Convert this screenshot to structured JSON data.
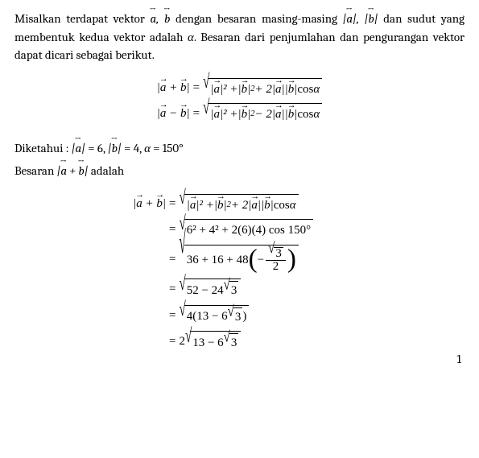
{
  "para1_a": "Misalkan terdapat vektor ",
  "para1_b": " dengan besaran masing-masing ",
  "para1_c": " dan sudut yang membentuk kedua vektor adalah ",
  "para1_d": ". Besaran dari penjumlahan dan pengurangan vektor dapat dicari sebagai berikut.",
  "alpha": "α",
  "given_label": "Diketahui : ",
  "given_a": "6",
  "given_b": "4",
  "given_alpha": "150°",
  "ask_a": "Besaran ",
  "ask_b": " adalah",
  "cos": "cos",
  "step2": "6² + 4² + 2(6)(4) cos 150°",
  "step3_a": "36 + 16 + 48",
  "step3_frac_num": "3",
  "step3_frac_den": "2",
  "step4_a": "52 − 24",
  "step4_b": "3",
  "step5_a": "4(13 − 6",
  "step5_b": "3",
  "step5_c": ")",
  "step6_pre": "2",
  "step6_a": "13 − 6",
  "step6_b": "3",
  "page": "1"
}
